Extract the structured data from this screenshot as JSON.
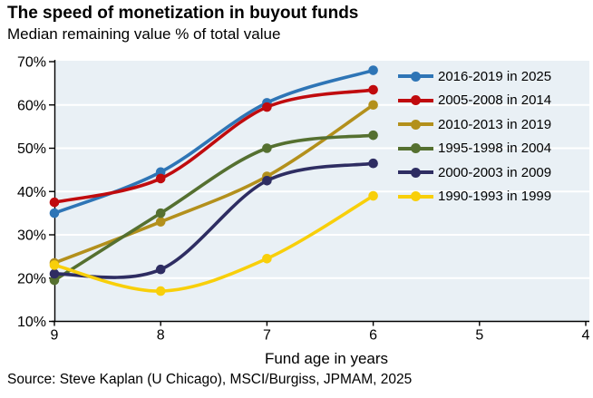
{
  "header": {
    "title": "The speed of monetization in buyout funds",
    "subtitle": "Median remaining value % of total value"
  },
  "footer": {
    "source": "Source: Steve Kaplan (U Chicago), MSCI/Burgiss, JPMAM, 2025"
  },
  "chart_data": {
    "type": "line",
    "title": "The speed of monetization in buyout funds",
    "subtitle": "Median remaining value % of total value",
    "x": [
      9,
      8,
      7,
      6
    ],
    "x_axis": {
      "label": "Fund age in years",
      "ticks": [
        "9",
        "8",
        "7",
        "6",
        "5",
        "4"
      ],
      "range": [
        9,
        4
      ],
      "reversed": true
    },
    "y_axis": {
      "label": "Median remaining value % of total value",
      "ticks": [
        "70%",
        "60%",
        "50%",
        "40%",
        "30%",
        "20%",
        "10%"
      ],
      "range": [
        10,
        70
      ],
      "unit": "%"
    },
    "grid": "horizontal white gridlines on light-blue panel",
    "legend_position": "inside-right",
    "plot_background": "#E9F0F5",
    "gridline_color": "#FFFFFF",
    "axis_color": "#000000",
    "line_style": "smoothed with circular markers",
    "series": [
      {
        "name": "2016-2019 in 2025",
        "color": "#2E75B6",
        "values": [
          35,
          44.5,
          60.5,
          68
        ]
      },
      {
        "name": "2005-2008 in 2014",
        "color": "#C00B0E",
        "values": [
          37.5,
          43,
          59.5,
          63.5
        ]
      },
      {
        "name": "2010-2013 in 2019",
        "color": "#B3901C",
        "values": [
          23.5,
          33,
          43.5,
          60
        ]
      },
      {
        "name": "1995-1998 in 2004",
        "color": "#557030",
        "values": [
          19.5,
          35,
          50,
          53
        ]
      },
      {
        "name": "2000-2003 in 2009",
        "color": "#2E2D62",
        "values": [
          21,
          22,
          42.5,
          46.5
        ]
      },
      {
        "name": "1990-1993 in 1999",
        "color": "#F8CF0A",
        "values": [
          23,
          17,
          24.5,
          39
        ]
      }
    ]
  }
}
